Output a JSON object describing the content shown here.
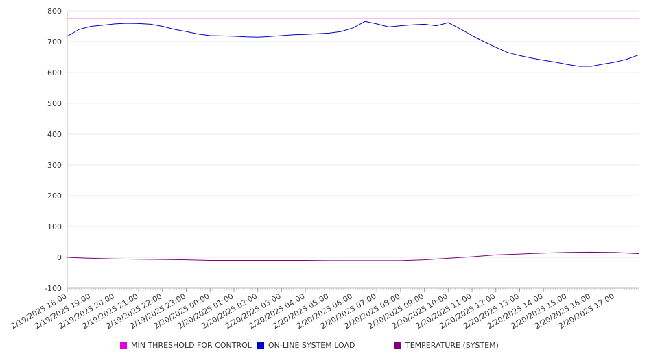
{
  "chart_data": {
    "type": "line",
    "title": "",
    "xlabel": "",
    "ylabel": "",
    "ylim": [
      -100,
      800
    ],
    "yticks": [
      "800",
      "700",
      "600",
      "500",
      "400",
      "300",
      "200",
      "100",
      "0",
      "-100"
    ],
    "xlim": [
      "2/19/2025 18:00",
      "2/20/2025 18:00"
    ],
    "xticks": [
      "2/19/2025 18:00",
      "2/19/2025 19:00",
      "2/19/2025 20:00",
      "2/19/2025 21:00",
      "2/19/2025 22:00",
      "2/19/2025 23:00",
      "2/20/2025 00:00",
      "2/20/2025 01:00",
      "2/20/2025 02:00",
      "2/20/2025 03:00",
      "2/20/2025 04:00",
      "2/20/2025 05:00",
      "2/20/2025 06:00",
      "2/20/2025 07:00",
      "2/20/2025 08:00",
      "2/20/2025 09:00",
      "2/20/2025 10:00",
      "2/20/2025 11:00",
      "2/20/2025 12:00",
      "2/20/2025 13:00",
      "2/20/2025 14:00",
      "2/20/2025 15:00",
      "2/20/2025 16:00",
      "2/20/2025 17:00"
    ],
    "grid": true,
    "legend_position": "bottom",
    "series": [
      {
        "name": "MIN THRESHOLD FOR CONTROL",
        "color": "#e000e0",
        "x": [
          "2/19/2025 18:00",
          "2/20/2025 18:00"
        ],
        "y": [
          776,
          776
        ]
      },
      {
        "name": "ON-LINE SYSTEM LOAD",
        "color": "#0000cc",
        "x": [
          "2/19/2025 18:00",
          "2/19/2025 18:30",
          "2/19/2025 19:00",
          "2/19/2025 19:30",
          "2/19/2025 20:00",
          "2/19/2025 20:30",
          "2/19/2025 21:00",
          "2/19/2025 21:30",
          "2/19/2025 22:00",
          "2/19/2025 22:30",
          "2/19/2025 23:00",
          "2/19/2025 23:30",
          "2/20/2025 00:00",
          "2/20/2025 00:30",
          "2/20/2025 01:00",
          "2/20/2025 01:30",
          "2/20/2025 02:00",
          "2/20/2025 02:30",
          "2/20/2025 03:00",
          "2/20/2025 03:30",
          "2/20/2025 04:00",
          "2/20/2025 04:30",
          "2/20/2025 05:00",
          "2/20/2025 05:30",
          "2/20/2025 06:00",
          "2/20/2025 06:30",
          "2/20/2025 07:00",
          "2/20/2025 07:30",
          "2/20/2025 08:00",
          "2/20/2025 08:30",
          "2/20/2025 09:00",
          "2/20/2025 09:30",
          "2/20/2025 10:00",
          "2/20/2025 10:30",
          "2/20/2025 11:00",
          "2/20/2025 11:30",
          "2/20/2025 12:00",
          "2/20/2025 12:30",
          "2/20/2025 13:00",
          "2/20/2025 13:30",
          "2/20/2025 14:00",
          "2/20/2025 14:30",
          "2/20/2025 15:00",
          "2/20/2025 15:30",
          "2/20/2025 16:00",
          "2/20/2025 16:30",
          "2/20/2025 17:00",
          "2/20/2025 17:30",
          "2/20/2025 18:00"
        ],
        "y": [
          718,
          740,
          750,
          754,
          758,
          760,
          759,
          757,
          750,
          740,
          733,
          725,
          720,
          719,
          718,
          716,
          715,
          717,
          720,
          723,
          724,
          726,
          728,
          733,
          745,
          766,
          758,
          748,
          752,
          755,
          757,
          752,
          762,
          742,
          720,
          700,
          682,
          665,
          655,
          647,
          640,
          634,
          626,
          620,
          620,
          627,
          634,
          643,
          657
        ]
      },
      {
        "name": "TEMPERATURE (SYSTEM)",
        "color": "#800080",
        "x": [
          "2/19/2025 18:00",
          "2/19/2025 19:00",
          "2/19/2025 20:00",
          "2/19/2025 21:00",
          "2/19/2025 22:00",
          "2/19/2025 23:00",
          "2/20/2025 00:00",
          "2/20/2025 01:00",
          "2/20/2025 02:00",
          "2/20/2025 03:00",
          "2/20/2025 04:00",
          "2/20/2025 05:00",
          "2/20/2025 06:00",
          "2/20/2025 07:00",
          "2/20/2025 08:00",
          "2/20/2025 09:00",
          "2/20/2025 10:00",
          "2/20/2025 11:00",
          "2/20/2025 12:00",
          "2/20/2025 13:00",
          "2/20/2025 14:00",
          "2/20/2025 15:00",
          "2/20/2025 16:00",
          "2/20/2025 17:00",
          "2/20/2025 18:00"
        ],
        "y": [
          0,
          -3,
          -5,
          -6,
          -7,
          -8,
          -10,
          -10,
          -10,
          -10,
          -10,
          -11,
          -11,
          -11,
          -11,
          -8,
          -3,
          2,
          8,
          11,
          14,
          16,
          17,
          16,
          12
        ]
      }
    ]
  }
}
